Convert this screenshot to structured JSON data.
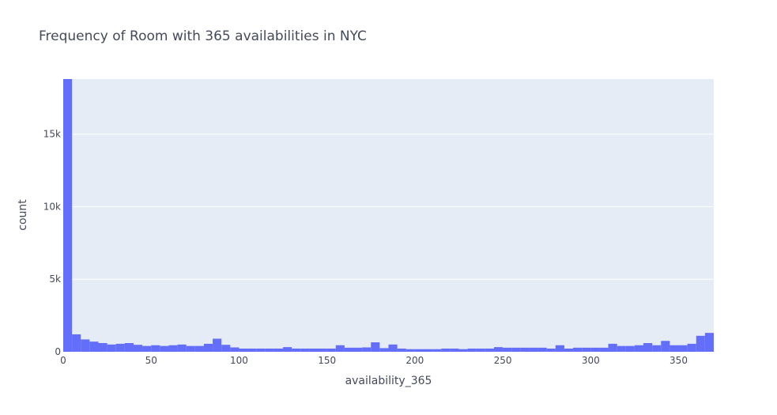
{
  "chart_data": {
    "type": "bar",
    "title": "Frequency of Room with 365 availabilities in NYC",
    "xlabel": "availability_365",
    "ylabel": "count",
    "xlim": [
      0,
      370
    ],
    "ylim": [
      0,
      18800
    ],
    "bin_width": 5,
    "x_ticks": [
      0,
      50,
      100,
      150,
      200,
      250,
      300,
      350
    ],
    "x_tick_labels": [
      "0",
      "50",
      "100",
      "150",
      "200",
      "250",
      "300",
      "350"
    ],
    "y_ticks": [
      0,
      5000,
      10000,
      15000
    ],
    "y_tick_labels": [
      "0",
      "5k",
      "10k",
      "15k"
    ],
    "grid": true,
    "bar_color": "#636efa",
    "plot_bg": "#e5ecf6",
    "values": [
      18800,
      1200,
      850,
      700,
      600,
      500,
      550,
      600,
      480,
      400,
      450,
      400,
      450,
      500,
      400,
      400,
      550,
      900,
      480,
      300,
      220,
      220,
      220,
      220,
      220,
      320,
      220,
      220,
      220,
      220,
      220,
      450,
      280,
      280,
      300,
      650,
      250,
      500,
      220,
      180,
      180,
      180,
      180,
      220,
      220,
      180,
      220,
      220,
      220,
      320,
      280,
      280,
      280,
      280,
      280,
      220,
      450,
      220,
      280,
      280,
      280,
      280,
      550,
      400,
      400,
      450,
      600,
      450,
      750,
      450,
      450,
      550,
      1100,
      1300
    ]
  }
}
